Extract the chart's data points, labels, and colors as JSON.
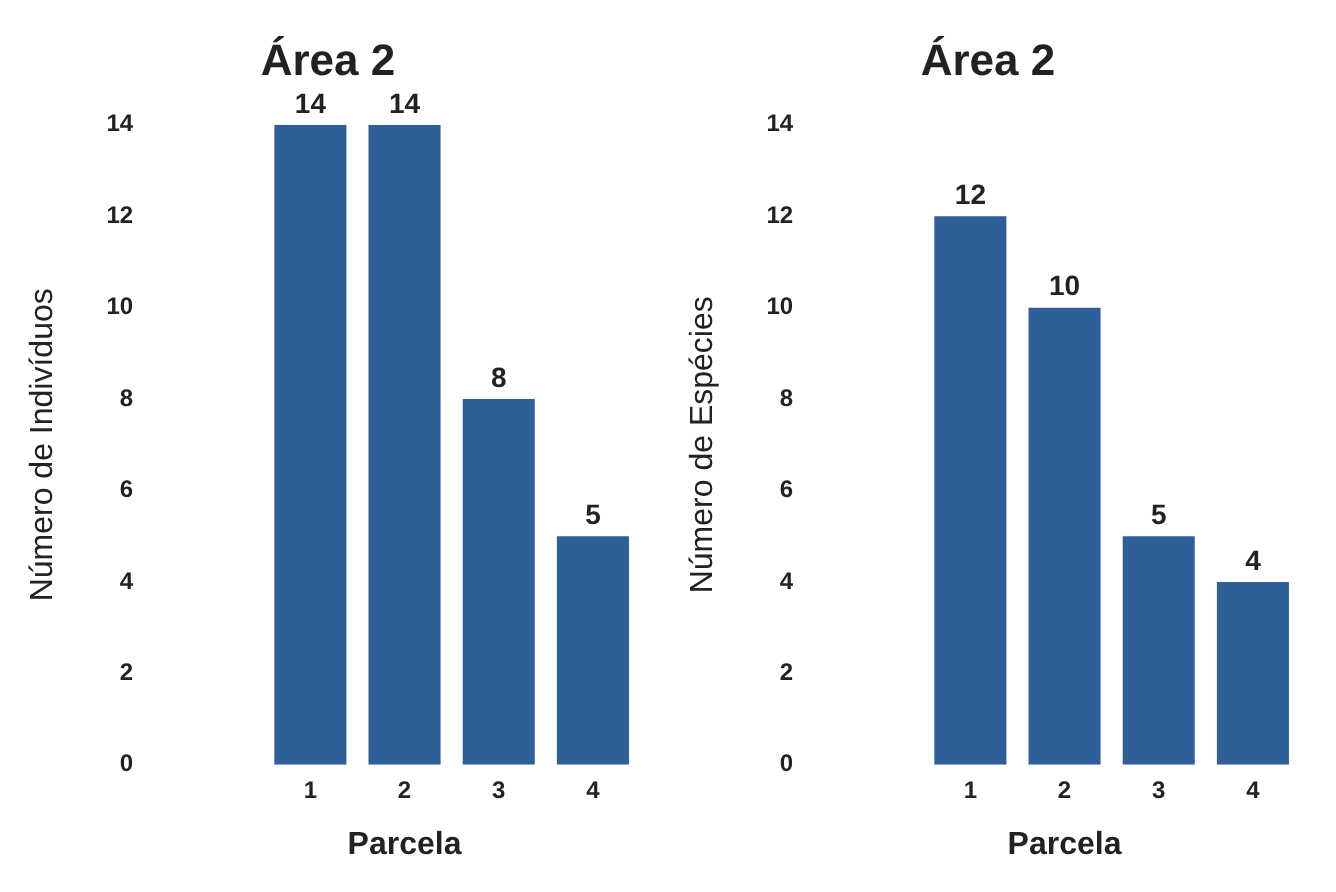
{
  "chart_data": [
    {
      "type": "bar",
      "title": "Área 2",
      "xlabel": "Parcela",
      "ylabel": "Número de Indivíduos",
      "categories": [
        null,
        "1",
        "2",
        "3",
        "4"
      ],
      "values": [
        null,
        14,
        14,
        8,
        5
      ],
      "color": "#2f5f98",
      "ylim": [
        0,
        14
      ],
      "yticks": [
        0,
        2,
        4,
        6,
        8,
        10,
        12,
        14
      ],
      "grid": false,
      "legend": false,
      "data_labels": true
    },
    {
      "type": "bar",
      "title": "Área 2",
      "xlabel": "Parcela",
      "ylabel": "Número de Espécies",
      "categories": [
        null,
        "1",
        "2",
        "3",
        "4"
      ],
      "values": [
        null,
        12,
        10,
        5,
        4
      ],
      "color": "#2f5f98",
      "ylim": [
        0,
        14
      ],
      "yticks": [
        0,
        2,
        4,
        6,
        8,
        10,
        12,
        14
      ],
      "grid": false,
      "legend": false,
      "data_labels": true
    }
  ]
}
